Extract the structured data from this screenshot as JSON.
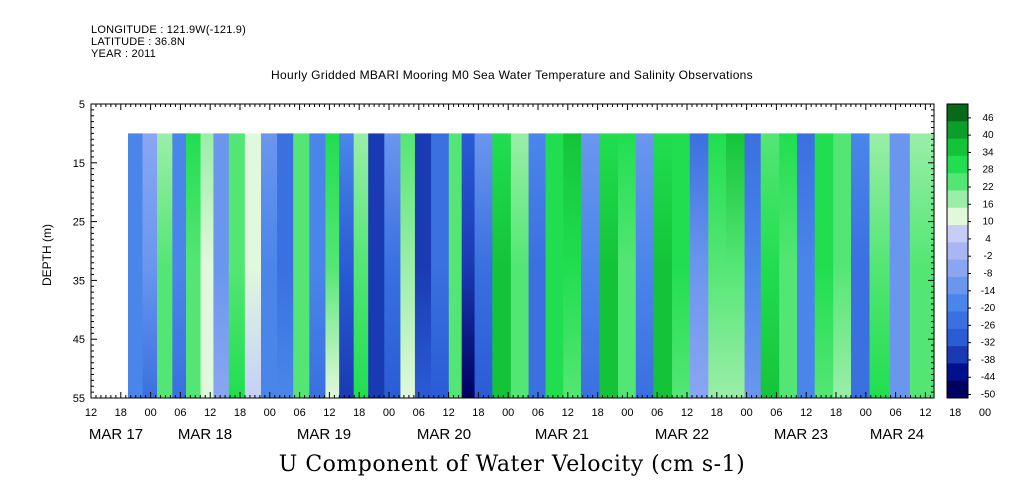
{
  "meta": {
    "longitude": "LONGITUDE : 121.9W(-121.9)",
    "latitude": "LATITUDE : 36.8N",
    "year": "YEAR : 2011"
  },
  "chart_data": {
    "type": "heatmap",
    "title": "Hourly Gridded MBARI Mooring M0 Sea Water Temperature and Salinity Observations",
    "xlabel": "U Component of Water Velocity (cm s-1)",
    "ylabel": "DEPTH (m)",
    "ylim": [
      5,
      55
    ],
    "y_ticks": [
      5,
      15,
      25,
      35,
      45,
      55
    ],
    "x_hour_ticks": [
      "12",
      "18",
      "00",
      "06",
      "12",
      "18",
      "00",
      "06",
      "12",
      "18",
      "00",
      "06",
      "12",
      "18",
      "00",
      "06",
      "12",
      "18",
      "00",
      "06",
      "12",
      "18",
      "00",
      "06",
      "12",
      "18",
      "00",
      "06",
      "12",
      "18",
      "00",
      "06",
      "12"
    ],
    "x_day_labels": [
      "MAR 17",
      "MAR 18",
      "MAR 19",
      "MAR 20",
      "MAR 21",
      "MAR 22",
      "MAR 23",
      "MAR 24"
    ],
    "colorbar": {
      "labels": [
        "46",
        "40",
        "34",
        "28",
        "22",
        "16",
        "10",
        "4",
        "-2",
        "-8",
        "-14",
        "-20",
        "-26",
        "-32",
        "-38",
        "-44",
        "-50"
      ],
      "range": [
        -50,
        50
      ]
    },
    "data_depth_range": [
      10,
      55
    ],
    "columns": [
      {
        "t": 0.0,
        "s": -0.35,
        "d": 0.05
      },
      {
        "t": 0.018,
        "s": -0.3,
        "d": 0.35
      },
      {
        "t": 0.036,
        "s": 0.45,
        "d": -0.1
      },
      {
        "t": 0.055,
        "s": -0.4,
        "d": 0.1
      },
      {
        "t": 0.072,
        "s": 0.55,
        "d": 0.05
      },
      {
        "t": 0.09,
        "s": 0.3,
        "d": 0.2
      },
      {
        "t": 0.106,
        "s": -0.2,
        "d": -0.1
      },
      {
        "t": 0.125,
        "s": 0.55,
        "d": -0.05
      },
      {
        "t": 0.145,
        "s": 0.2,
        "d": 0.2
      },
      {
        "t": 0.165,
        "s": -0.35,
        "d": 0.1
      },
      {
        "t": 0.185,
        "s": -0.45,
        "d": -0.1
      },
      {
        "t": 0.205,
        "s": 0.5,
        "d": 0.05
      },
      {
        "t": 0.225,
        "s": -0.4,
        "d": 0.1
      },
      {
        "t": 0.245,
        "s": 0.45,
        "d": 0.3
      },
      {
        "t": 0.262,
        "s": -0.6,
        "d": 0.4
      },
      {
        "t": 0.28,
        "s": 0.5,
        "d": -0.3
      },
      {
        "t": 0.298,
        "s": -0.75,
        "d": -0.05
      },
      {
        "t": 0.318,
        "s": -0.45,
        "d": 0.3
      },
      {
        "t": 0.338,
        "s": 0.35,
        "d": 0.2
      },
      {
        "t": 0.356,
        "s": -0.7,
        "d": -0.2
      },
      {
        "t": 0.376,
        "s": -0.55,
        "d": 0.1
      },
      {
        "t": 0.398,
        "s": 0.5,
        "d": 0.1
      },
      {
        "t": 0.414,
        "s": -0.8,
        "d": 0.45
      },
      {
        "t": 0.43,
        "s": -0.45,
        "d": 0.35
      },
      {
        "t": 0.452,
        "s": 0.7,
        "d": -0.05
      },
      {
        "t": 0.475,
        "s": 0.45,
        "d": -0.2
      },
      {
        "t": 0.497,
        "s": -0.45,
        "d": 0.05
      },
      {
        "t": 0.518,
        "s": 0.65,
        "d": 0.0
      },
      {
        "t": 0.54,
        "s": 0.6,
        "d": 0.2
      },
      {
        "t": 0.562,
        "s": -0.4,
        "d": 0.25
      },
      {
        "t": 0.585,
        "s": 0.7,
        "d": -0.05
      },
      {
        "t": 0.608,
        "s": 0.55,
        "d": 0.15
      },
      {
        "t": 0.63,
        "s": -0.35,
        "d": 0.25
      },
      {
        "t": 0.652,
        "s": 0.7,
        "d": -0.1
      },
      {
        "t": 0.675,
        "s": 0.6,
        "d": 0.1
      },
      {
        "t": 0.697,
        "s": -0.3,
        "d": -0.3
      },
      {
        "t": 0.72,
        "s": 0.5,
        "d": 0.2
      },
      {
        "t": 0.742,
        "s": 0.55,
        "d": 0.3
      },
      {
        "t": 0.765,
        "s": -0.35,
        "d": -0.2
      },
      {
        "t": 0.785,
        "s": 0.65,
        "d": -0.2
      },
      {
        "t": 0.808,
        "s": 0.55,
        "d": 0.2
      },
      {
        "t": 0.83,
        "s": -0.4,
        "d": -0.1
      },
      {
        "t": 0.852,
        "s": 0.6,
        "d": 0.1
      },
      {
        "t": 0.875,
        "s": 0.45,
        "d": 0.2
      },
      {
        "t": 0.897,
        "s": -0.45,
        "d": 0.1
      },
      {
        "t": 0.92,
        "s": 0.5,
        "d": -0.2
      },
      {
        "t": 0.945,
        "s": -0.25,
        "d": 0.1
      },
      {
        "t": 0.97,
        "s": 0.45,
        "d": -0.15
      },
      {
        "t": 1.0,
        "s": -0.3,
        "d": 0.05
      }
    ]
  }
}
